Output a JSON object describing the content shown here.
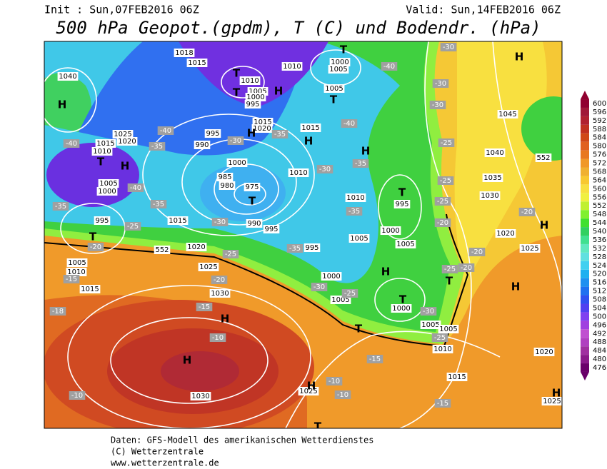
{
  "header": {
    "init": "Init : Sun,07FEB2016 06Z",
    "valid": "Valid: Sun,14FEB2016 06Z",
    "title": "500 hPa Geopot.(gpdm), T (C) und Bodendr. (hPa)"
  },
  "colorbar": {
    "levels": [
      476,
      480,
      484,
      488,
      492,
      496,
      500,
      504,
      508,
      512,
      516,
      520,
      524,
      528,
      532,
      536,
      540,
      544,
      548,
      552,
      556,
      560,
      564,
      568,
      572,
      576,
      580,
      584,
      588,
      592,
      596,
      600
    ],
    "colors": [
      "#6a006a",
      "#8a1a8a",
      "#a030a0",
      "#b040c0",
      "#c050d0",
      "#a040e0",
      "#8040f0",
      "#5040f0",
      "#3050f0",
      "#2070f0",
      "#2090f0",
      "#20b0f0",
      "#40d0f0",
      "#60e0e0",
      "#60e8c0",
      "#40e090",
      "#30d060",
      "#40e030",
      "#80f030",
      "#c0f030",
      "#f0f040",
      "#f8e040",
      "#f8c830",
      "#f0b030",
      "#f09828",
      "#e87820",
      "#e06020",
      "#d04818",
      "#c03020",
      "#b02030",
      "#a01838",
      "#900030"
    ]
  },
  "map": {
    "labels": [
      "H",
      "1040",
      "1018",
      "1015",
      "T",
      "1010",
      "1005",
      "1000",
      "995",
      "T",
      "H",
      "1010",
      "T",
      "1000",
      "1005",
      "1005",
      "T",
      "1015",
      "1020",
      "H",
      "995",
      "990",
      "-40",
      "1025",
      "1015",
      "1020",
      "1010",
      "T",
      "H",
      "1005",
      "1000",
      "-40",
      "1000",
      "985",
      "980",
      "975",
      "T",
      "990",
      "995",
      "1010",
      "1015",
      "H",
      "-35",
      "-30",
      "-30",
      "H",
      "-35",
      "1010",
      "-35",
      "T",
      "995",
      "1000",
      "1005",
      "1005",
      "995",
      "-35",
      "1000",
      "H",
      "-30",
      "1005",
      "-25",
      "T",
      "1000",
      "-30",
      "1005",
      "1005",
      "-25",
      "1010",
      "1015",
      "1020",
      "1045",
      "H",
      "-30",
      "-30",
      "-30",
      "-25",
      "1040",
      "1035",
      "-25",
      "1030",
      "-25",
      "-20",
      "1020",
      "1025",
      "H",
      "H",
      "T",
      "-20",
      "-25",
      "-20",
      "-20",
      "-40",
      "-40",
      "995",
      "T",
      "-35",
      "-35",
      "-30",
      "-25",
      "-20",
      "1015",
      "1020",
      "552",
      "1005",
      "1010",
      "-15",
      "1015",
      "1025",
      "-20",
      "1030",
      "-25",
      "-18",
      "-15",
      "H",
      "-10",
      "H",
      "1030",
      "-10",
      "1025",
      "-10",
      "-10",
      "-15",
      "T",
      "H",
      "T",
      "-15",
      "H",
      "1025",
      "552",
      "-40",
      "-35"
    ]
  },
  "footer": {
    "line1": "Daten: GFS-Modell des amerikanischen Wetterdienstes",
    "line2": "(C) Wetterzentrale",
    "line3": "www.wetterzentrale.de"
  }
}
